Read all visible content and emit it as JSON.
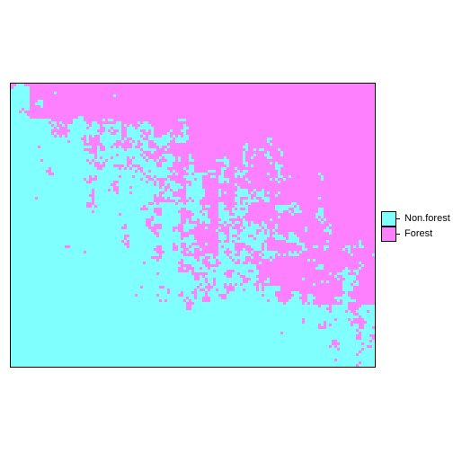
{
  "map": {
    "type": "categorical-raster",
    "classes": [
      {
        "name": "Non.forest",
        "color": "#80ffff"
      },
      {
        "name": "Forest",
        "color": "#ff80ff"
      }
    ]
  },
  "legend": {
    "items": [
      {
        "label": "Non.forest",
        "color": "#80ffff"
      },
      {
        "label": "Forest",
        "color": "#ff80ff"
      }
    ]
  }
}
